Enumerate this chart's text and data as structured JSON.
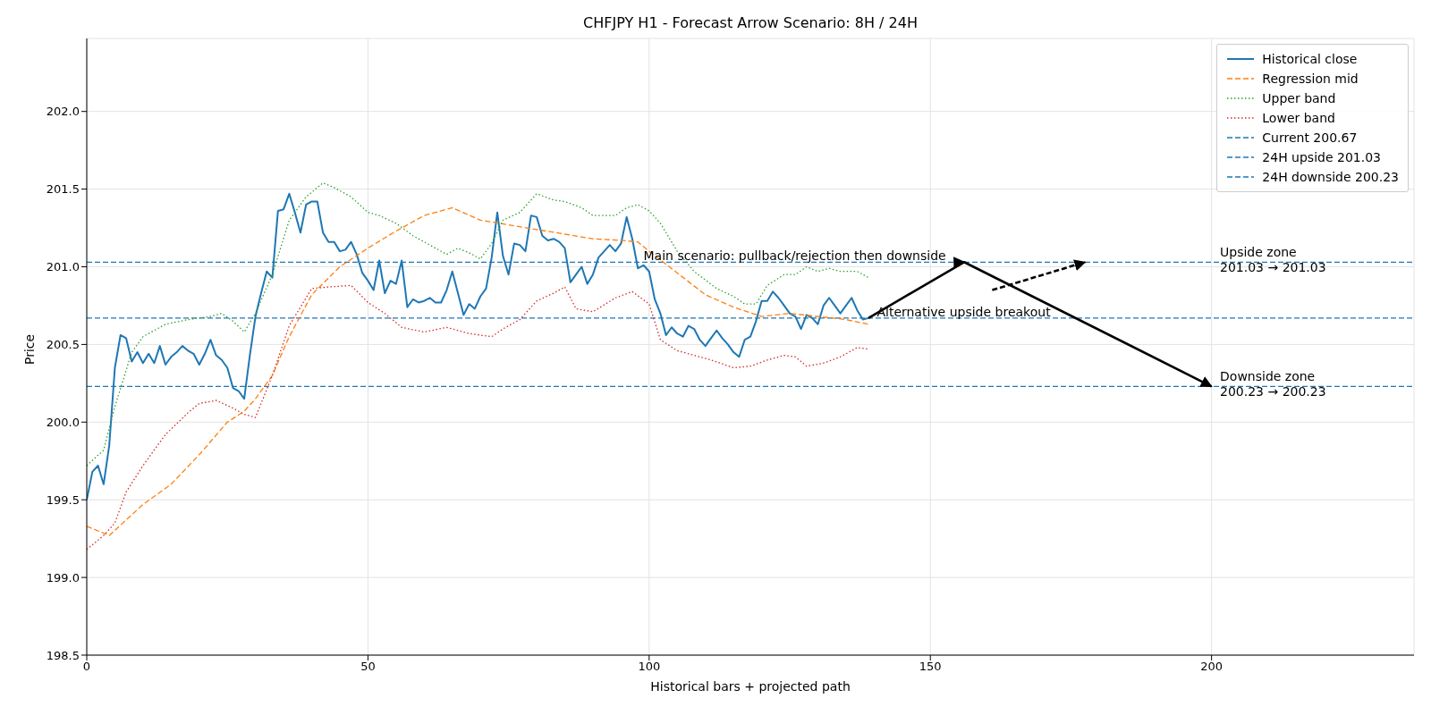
{
  "chart_data": {
    "type": "line",
    "title": "CHFJPY H1 - Forecast Arrow Scenario: 8H / 24H",
    "xlabel": "Historical bars + projected path",
    "ylabel": "Price",
    "xlim": [
      0,
      236
    ],
    "ylim": [
      198.5,
      202.47
    ],
    "xticks": [
      0,
      50,
      100,
      150,
      200
    ],
    "yticks": [
      198.5,
      {
        "value": 199,
        "label": "199.0"
      },
      199.5,
      {
        "value": 200,
        "label": "200.0"
      },
      200.5,
      {
        "value": 201,
        "label": "201.0"
      },
      201.5,
      {
        "value": 202,
        "label": "202.0"
      }
    ],
    "grid": true,
    "legend": "top right",
    "marker": "none",
    "series": [
      {
        "name": "Historical close",
        "color": "#1f77b4",
        "line_style": "solid",
        "x": [
          0,
          1,
          2,
          3,
          4,
          5,
          6,
          7,
          8,
          9,
          10,
          11,
          12,
          13,
          14,
          15,
          16,
          17,
          18,
          19,
          20,
          21,
          22,
          23,
          24,
          25,
          26,
          27,
          28,
          29,
          30,
          31,
          32,
          33,
          34,
          35,
          36,
          37,
          38,
          39,
          40,
          41,
          42,
          43,
          44,
          45,
          46,
          47,
          48,
          49,
          50,
          51,
          52,
          53,
          54,
          55,
          56,
          57,
          58,
          59,
          60,
          61,
          62,
          63,
          64,
          65,
          66,
          67,
          68,
          69,
          70,
          71,
          72,
          73,
          74,
          75,
          76,
          77,
          78,
          79,
          80,
          81,
          82,
          83,
          84,
          85,
          86,
          87,
          88,
          89,
          90,
          91,
          92,
          93,
          94,
          95,
          96,
          97,
          98,
          99,
          100,
          101,
          102,
          103,
          104,
          105,
          106,
          107,
          108,
          109,
          110,
          111,
          112,
          113,
          114,
          115,
          116,
          117,
          118,
          119,
          120,
          121,
          122,
          123,
          124,
          125,
          126,
          127,
          128,
          129,
          130,
          131,
          132,
          133,
          134,
          135,
          136,
          137,
          138,
          139
        ],
        "values": [
          199.5,
          199.68,
          199.72,
          199.6,
          199.85,
          200.35,
          200.56,
          200.54,
          200.39,
          200.45,
          200.38,
          200.44,
          200.38,
          200.49,
          200.37,
          200.42,
          200.45,
          200.49,
          200.46,
          200.44,
          200.37,
          200.44,
          200.53,
          200.43,
          200.4,
          200.35,
          200.22,
          200.2,
          200.15,
          200.43,
          200.68,
          200.83,
          200.97,
          200.93,
          201.36,
          201.37,
          201.47,
          201.35,
          201.22,
          201.4,
          201.42,
          201.42,
          201.22,
          201.16,
          201.16,
          201.1,
          201.11,
          201.16,
          201.08,
          200.96,
          200.91,
          200.85,
          201.04,
          200.83,
          200.91,
          200.89,
          201.04,
          200.74,
          200.79,
          200.77,
          200.78,
          200.8,
          200.77,
          200.77,
          200.85,
          200.97,
          200.83,
          200.69,
          200.76,
          200.73,
          200.81,
          200.86,
          201.06,
          201.35,
          201.07,
          200.95,
          201.15,
          201.14,
          201.1,
          201.33,
          201.32,
          201.2,
          201.17,
          201.18,
          201.16,
          201.12,
          200.9,
          200.95,
          201.0,
          200.89,
          200.95,
          201.06,
          201.1,
          201.14,
          201.1,
          201.15,
          201.32,
          201.18,
          200.99,
          201.01,
          200.97,
          200.79,
          200.7,
          200.56,
          200.61,
          200.57,
          200.55,
          200.62,
          200.6,
          200.53,
          200.49,
          200.54,
          200.59,
          200.54,
          200.5,
          200.45,
          200.42,
          200.53,
          200.55,
          200.65,
          200.78,
          200.78,
          200.84,
          200.8,
          200.75,
          200.7,
          200.68,
          200.6,
          200.69,
          200.67,
          200.63,
          200.75,
          200.8,
          200.75,
          200.7,
          200.75,
          200.8,
          200.72,
          200.66,
          200.67
        ]
      },
      {
        "name": "Regression mid",
        "color": "#ff7f0e",
        "line_style": "dashed",
        "x": [
          0,
          4,
          10,
          15,
          20,
          25,
          28,
          30,
          33,
          36,
          40,
          45,
          50,
          55,
          60,
          65,
          70,
          75,
          80,
          85,
          90,
          95,
          98,
          100,
          105,
          110,
          115,
          120,
          125,
          130,
          135,
          139
        ],
        "values": [
          199.33,
          199.27,
          199.47,
          199.6,
          199.79,
          200.0,
          200.07,
          200.15,
          200.3,
          200.55,
          200.82,
          201.0,
          201.12,
          201.23,
          201.33,
          201.38,
          201.3,
          201.27,
          201.24,
          201.21,
          201.18,
          201.17,
          201.16,
          201.1,
          200.96,
          200.82,
          200.74,
          200.68,
          200.7,
          200.68,
          200.66,
          200.63
        ]
      },
      {
        "name": "Upper band",
        "color": "#2ca02c",
        "line_style": "dotted",
        "x": [
          0,
          3,
          5,
          8,
          10,
          14,
          18,
          22,
          24,
          26,
          28,
          30,
          33,
          36,
          39,
          42,
          44,
          47,
          50,
          52,
          55,
          58,
          62,
          64,
          66,
          68,
          70,
          72,
          74,
          77,
          80,
          83,
          85,
          88,
          90,
          94,
          96,
          98,
          100,
          102,
          105,
          108,
          112,
          115,
          117,
          119,
          121,
          124,
          126,
          128,
          130,
          132,
          134,
          137,
          139
        ],
        "values": [
          199.72,
          199.82,
          200.1,
          200.45,
          200.55,
          200.63,
          200.66,
          200.68,
          200.7,
          200.65,
          200.58,
          200.7,
          200.95,
          201.3,
          201.45,
          201.54,
          201.51,
          201.45,
          201.35,
          201.33,
          201.28,
          201.2,
          201.12,
          201.08,
          201.12,
          201.09,
          201.05,
          201.15,
          201.3,
          201.35,
          201.47,
          201.43,
          201.42,
          201.38,
          201.33,
          201.33,
          201.38,
          201.4,
          201.36,
          201.28,
          201.1,
          200.97,
          200.86,
          200.81,
          200.76,
          200.76,
          200.88,
          200.95,
          200.95,
          201.0,
          200.97,
          200.99,
          200.97,
          200.97,
          200.93
        ]
      },
      {
        "name": "Lower band",
        "color": "#d62728",
        "line_style": "dotted",
        "x": [
          0,
          3,
          5,
          7,
          10,
          14,
          18,
          20,
          23,
          26,
          28,
          30,
          33,
          36,
          40,
          43,
          47,
          50,
          53,
          56,
          60,
          64,
          68,
          72,
          74,
          77,
          80,
          83,
          85,
          87,
          90,
          94,
          97,
          100,
          102,
          105,
          108,
          111,
          115,
          118,
          121,
          124,
          126,
          128,
          131,
          134,
          137,
          139
        ],
        "values": [
          199.18,
          199.27,
          199.35,
          199.55,
          199.72,
          199.92,
          200.06,
          200.12,
          200.14,
          200.09,
          200.05,
          200.03,
          200.3,
          200.62,
          200.86,
          200.87,
          200.88,
          200.77,
          200.7,
          200.61,
          200.58,
          200.61,
          200.57,
          200.55,
          200.6,
          200.66,
          200.78,
          200.83,
          200.87,
          200.73,
          200.71,
          200.8,
          200.84,
          200.76,
          200.53,
          200.46,
          200.43,
          200.4,
          200.35,
          200.36,
          200.4,
          200.43,
          200.42,
          200.36,
          200.38,
          200.42,
          200.48,
          200.47
        ]
      },
      {
        "color": "#000000",
        "line_style": "solid",
        "x": [
          139,
          156,
          200
        ],
        "values": [
          200.67,
          201.03,
          200.23
        ]
      },
      {
        "color": "#000000",
        "line_style": "dashed",
        "x": [
          161,
          177.5
        ],
        "values": [
          200.85,
          201.03
        ]
      }
    ],
    "ref_lines": [
      {
        "axis": "y",
        "value": 200.67,
        "label": "Current 200.67",
        "color": "#1f77b4",
        "line_style": "dashed"
      },
      {
        "axis": "y",
        "value": 201.03,
        "label": "24H upside 201.03",
        "color": "#1f77b4",
        "line_style": "dashed"
      },
      {
        "axis": "y",
        "value": 200.23,
        "label": "24H downside 200.23",
        "color": "#1f77b4",
        "line_style": "dashed"
      }
    ],
    "annotations": [
      "Main scenario: pullback/rejection then downside",
      "Alternative upside breakout",
      "Upside zone\n201.03 → 201.03",
      "Downside zone\n200.23 → 200.23"
    ]
  }
}
